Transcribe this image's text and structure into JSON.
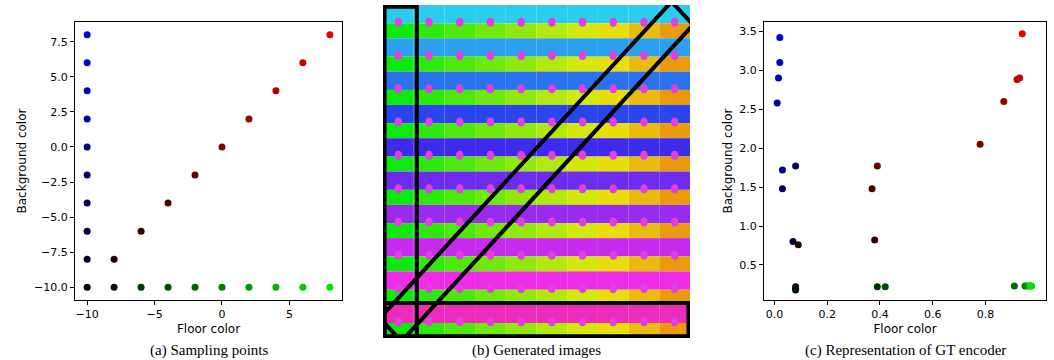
{
  "chart_data": [
    {
      "type": "scatter",
      "caption": "(a) Sampling points",
      "x_label": "Floor color",
      "y_label": "Background color",
      "marker": "circle",
      "grid": false,
      "tick_labels": true,
      "xlim": [
        -10.9,
        8.9
      ],
      "xticks": [
        {
          "value": -10,
          "label": "−10"
        },
        {
          "value": -5,
          "label": "−5"
        },
        0,
        5
      ],
      "ylim": [
        -10.9,
        8.9
      ],
      "yticks": [
        {
          "value": -10,
          "label": "−10.0"
        },
        {
          "value": -7.5,
          "label": "−7.5"
        },
        {
          "value": -5,
          "label": "−5.0"
        },
        {
          "value": -2.5,
          "label": "−2.5"
        },
        {
          "value": 0,
          "label": "0.0"
        },
        2.5,
        {
          "value": 5,
          "label": "5.0"
        },
        7.5
      ],
      "series": [
        {
          "x": [
            -10,
            -10,
            -10,
            -10,
            -10,
            -10,
            -10,
            -10,
            -10
          ],
          "values": [
            8,
            6,
            4,
            2,
            0,
            -2,
            -4,
            -6,
            -8
          ],
          "colors": [
            "#0000e6",
            "#0000cc",
            "#0000b3",
            "#000099",
            "#000080",
            "#000066",
            "#00004d",
            "#000033",
            "#00001a"
          ]
        },
        {
          "x": [
            -8,
            -6,
            -4,
            -2,
            0,
            2,
            4,
            6,
            8
          ],
          "values": [
            -8,
            -6,
            -4,
            -2,
            0,
            2,
            4,
            6,
            8
          ],
          "colors": [
            "#1a0000",
            "#330000",
            "#4d0000",
            "#660000",
            "#800000",
            "#990000",
            "#b30000",
            "#cc0000",
            "#e60000"
          ]
        },
        {
          "x": [
            -10,
            -8,
            -6,
            -4,
            -2,
            0,
            2,
            4,
            6,
            8
          ],
          "values": [
            -10,
            -10,
            -10,
            -10,
            -10,
            -10,
            -10,
            -10,
            -10,
            -10
          ],
          "colors": [
            "#000000",
            "#001a00",
            "#003300",
            "#004d00",
            "#006600",
            "#008000",
            "#009900",
            "#00b300",
            "#00cc00",
            "#00e600"
          ]
        }
      ]
    },
    {
      "type": "scatter",
      "caption": "(c) Representation of GT encoder",
      "x_label": "Floor color",
      "y_label": "Background color",
      "marker": "circle",
      "grid": false,
      "tick_labels": true,
      "xlim": [
        -0.04,
        1.03
      ],
      "xticks": [
        {
          "value": 0,
          "label": "0.0"
        },
        0.2,
        0.4,
        0.6,
        0.8
      ],
      "ylim": [
        0.05,
        3.62
      ],
      "yticks": [
        0.5,
        {
          "value": 1,
          "label": "1.0"
        },
        1.5,
        {
          "value": 2,
          "label": "2.0"
        },
        2.5,
        {
          "value": 3,
          "label": "3.0"
        },
        3.5
      ],
      "series": [
        {
          "x": [
            0.02,
            0.02,
            0.015,
            0.01,
            0.03,
            0.03,
            0.08,
            0.07,
            0.08
          ],
          "values": [
            3.42,
            3.1,
            2.9,
            2.58,
            1.72,
            1.48,
            1.77,
            0.8,
            0.22
          ],
          "colors": [
            "#0000e6",
            "#0000cc",
            "#0000b3",
            "#000099",
            "#000080",
            "#000066",
            "#00004d",
            "#000033",
            "#00001a"
          ]
        },
        {
          "x": [
            0.09,
            0.38,
            0.37,
            0.39,
            0.78,
            0.87,
            0.92,
            0.93,
            0.94
          ],
          "values": [
            0.76,
            0.82,
            1.48,
            1.77,
            2.05,
            2.6,
            2.88,
            2.9,
            3.47
          ],
          "colors": [
            "#1a0000",
            "#330000",
            "#4d0000",
            "#660000",
            "#800000",
            "#990000",
            "#b30000",
            "#cc0000",
            "#e60000"
          ]
        },
        {
          "x": [
            0.08,
            0.08,
            0.39,
            0.42,
            0.91,
            0.95,
            0.96,
            0.97,
            0.975,
            0.97
          ],
          "values": [
            0.18,
            0.2,
            0.22,
            0.22,
            0.23,
            0.23,
            0.23,
            0.23,
            0.23,
            0.23
          ],
          "colors": [
            "#000000",
            "#001a00",
            "#003300",
            "#004d00",
            "#006600",
            "#008000",
            "#009900",
            "#00b300",
            "#00cc00",
            "#00e600"
          ]
        }
      ]
    }
  ],
  "images": {
    "caption": "(b) Generated images"
  }
}
